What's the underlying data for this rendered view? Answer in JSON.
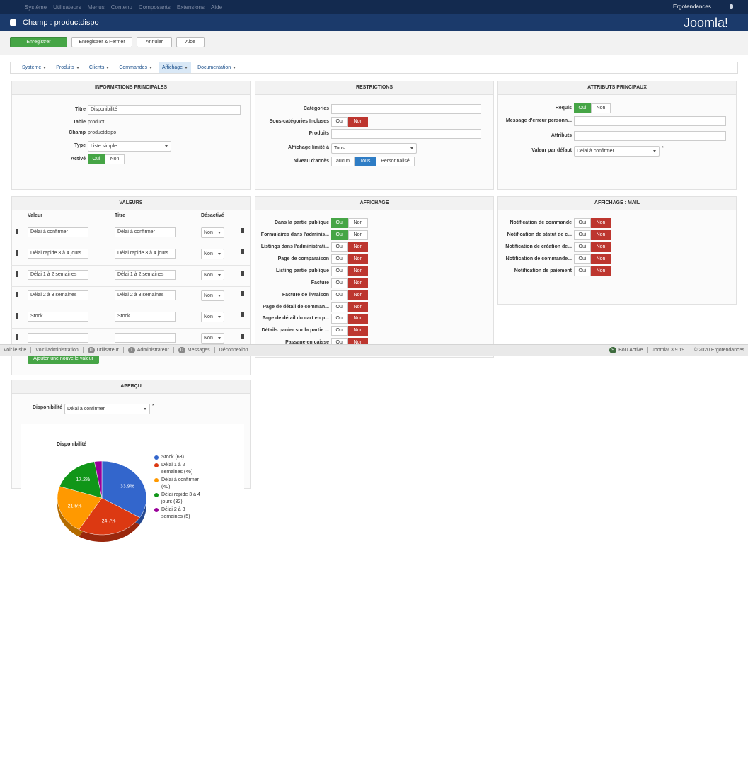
{
  "topbar": {
    "menu": [
      "Système",
      "Utilisateurs",
      "Menus",
      "Contenu",
      "Composants",
      "Extensions",
      "Aide"
    ],
    "site": "Ergotendances"
  },
  "header": {
    "title": "Champ : productdispo",
    "logo": "Joomla!"
  },
  "toolbar": [
    "Enregistrer",
    "Enregistrer & Fermer",
    "Annuler",
    "Aide"
  ],
  "submenu": {
    "items": [
      "Système",
      "Produits",
      "Clients",
      "Commandes",
      "Affichage",
      "Documentation"
    ],
    "active": 4
  },
  "info": {
    "title": "INFORMATIONS PRINCIPALES",
    "fields": [
      {
        "label": "Titre",
        "kind": "input",
        "value": "Disponibilité"
      },
      {
        "label": "Table",
        "kind": "text",
        "value": "product"
      },
      {
        "label": "Champ",
        "kind": "text",
        "value": "productdispo"
      },
      {
        "label": "Type",
        "kind": "select",
        "value": "Liste simple"
      },
      {
        "label": "Activé",
        "kind": "toggle",
        "options": [
          "Oui",
          "Non"
        ],
        "selected": 0
      }
    ]
  },
  "restrictions": {
    "title": "RESTRICTIONS",
    "fields": [
      {
        "label": "Catégories",
        "kind": "input"
      },
      {
        "label": "Sous-catégories Incluses",
        "kind": "toggle",
        "options": [
          "Oui",
          "Non"
        ],
        "selected": 1
      },
      {
        "label": "Produits",
        "kind": "input"
      },
      {
        "label": "Affichage limité à",
        "kind": "select",
        "value": "Tous"
      },
      {
        "label": "Niveau d'accès",
        "kind": "toggle",
        "options": [
          "aucun",
          "Tous",
          "Personnalisé"
        ],
        "selected": 1
      }
    ]
  },
  "attributes": {
    "title": "ATTRIBUTS PRINCIPAUX",
    "fields": [
      {
        "label": "Requis",
        "kind": "toggle",
        "options": [
          "Oui",
          "Non"
        ],
        "selected": 0
      },
      {
        "label": "Message d'erreur personn...",
        "kind": "input"
      },
      {
        "label": "Attributs",
        "kind": "input"
      },
      {
        "label": "Valeur par défaut",
        "kind": "select",
        "value": "Délai à confirmer",
        "marker": "*"
      }
    ]
  },
  "values_panel": {
    "title": "VALEURS",
    "columns": [
      "Valeur",
      "Titre",
      "Désactivé"
    ],
    "rows": [
      {
        "value": "Délai à confirmer",
        "title": "Délai à confirmer",
        "disabled": "Non"
      },
      {
        "value": "Délai rapide 3 à 4 jours",
        "title": "Délai rapide 3 à 4 jours",
        "disabled": "Non"
      },
      {
        "value": "Délai 1 à 2 semaines",
        "title": "Délai 1 à 2 semaines",
        "disabled": "Non"
      },
      {
        "value": "Délai 2 à 3 semaines",
        "title": "Délai 2 à 3 semaines",
        "disabled": "Non"
      },
      {
        "value": "Stock",
        "title": "Stock",
        "disabled": "Non"
      },
      {
        "disabled": "Non"
      }
    ],
    "add_button": "Ajouter une nouvelle valeur"
  },
  "display": {
    "title": "AFFICHAGE",
    "fields": [
      {
        "label": "Dans la partie publique",
        "kind": "toggle",
        "options": [
          "Oui",
          "Non"
        ],
        "selected": 0
      },
      {
        "label": "Formulaires dans l'adminis...",
        "kind": "toggle",
        "options": [
          "Oui",
          "Non"
        ],
        "selected": 0
      },
      {
        "label": "Listings dans l'administrati...",
        "kind": "toggle",
        "options": [
          "Oui",
          "Non"
        ],
        "selected": 1
      },
      {
        "label": "Page de comparaison",
        "kind": "toggle",
        "options": [
          "Oui",
          "Non"
        ],
        "selected": 1
      },
      {
        "label": "Listing partie publique",
        "kind": "toggle",
        "options": [
          "Oui",
          "Non"
        ],
        "selected": 1
      },
      {
        "label": "Facture",
        "kind": "toggle",
        "options": [
          "Oui",
          "Non"
        ],
        "selected": 1
      },
      {
        "label": "Facture de livraison",
        "kind": "toggle",
        "options": [
          "Oui",
          "Non"
        ],
        "selected": 1
      },
      {
        "label": "Page de détail de comman...",
        "kind": "toggle",
        "options": [
          "Oui",
          "Non"
        ],
        "selected": 1
      },
      {
        "label": "Page de détail du cart en p...",
        "kind": "toggle",
        "options": [
          "Oui",
          "Non"
        ],
        "selected": 1
      },
      {
        "label": "Détails panier sur la partie ...",
        "kind": "toggle",
        "options": [
          "Oui",
          "Non"
        ],
        "selected": 1
      },
      {
        "label": "Passage en caisse",
        "kind": "toggle",
        "options": [
          "Oui",
          "Non"
        ],
        "selected": 1
      }
    ]
  },
  "mail": {
    "title": "AFFICHAGE : MAIL",
    "fields": [
      {
        "label": "Notification de commande",
        "kind": "toggle",
        "options": [
          "Oui",
          "Non"
        ],
        "selected": 1
      },
      {
        "label": "Notification de statut de c...",
        "kind": "toggle",
        "options": [
          "Oui",
          "Non"
        ],
        "selected": 1
      },
      {
        "label": "Notification de création de...",
        "kind": "toggle",
        "options": [
          "Oui",
          "Non"
        ],
        "selected": 1
      },
      {
        "label": "Notification de commande...",
        "kind": "toggle",
        "options": [
          "Oui",
          "Non"
        ],
        "selected": 1
      },
      {
        "label": "Notification de paiement",
        "kind": "toggle",
        "options": [
          "Oui",
          "Non"
        ],
        "selected": 1
      }
    ]
  },
  "status": {
    "left": [
      {
        "text": "Voir le site"
      },
      {
        "text": "Voir l'administration"
      },
      {
        "count": 0,
        "text": "Utilisateur"
      },
      {
        "count": 1,
        "text": "Administrateur"
      },
      {
        "count": 0,
        "text": "Messages"
      },
      {
        "text": "Déconnexion"
      }
    ],
    "right": [
      {
        "count": 9,
        "text": "BoU Active"
      },
      {
        "text": "Joomla! 3.9.19"
      },
      {
        "text": "© 2020 Ergotendances"
      }
    ]
  },
  "preview": {
    "title": "APERÇU",
    "label": "Disponibilité",
    "select": "Délai à confirmer",
    "marker": "*",
    "chart": {
      "type": "pie",
      "title": "Disponibilité",
      "categories": [
        "Stock (63)",
        "Délai 1 à 2 semaines (46)",
        "Délai à confirmer (40)",
        "Délai rapide 3 à 4 jours (32)",
        "Délai 2 à 3 semaines (5)"
      ],
      "values": [
        33.9,
        24.7,
        21.5,
        17.2,
        2.7
      ],
      "value_labels": [
        "33.9%",
        "24.7%",
        "21.5%",
        "17.2%",
        null
      ],
      "colors": [
        "#3366cc",
        "#dc3912",
        "#ff9900",
        "#109618",
        "#990099"
      ]
    }
  }
}
